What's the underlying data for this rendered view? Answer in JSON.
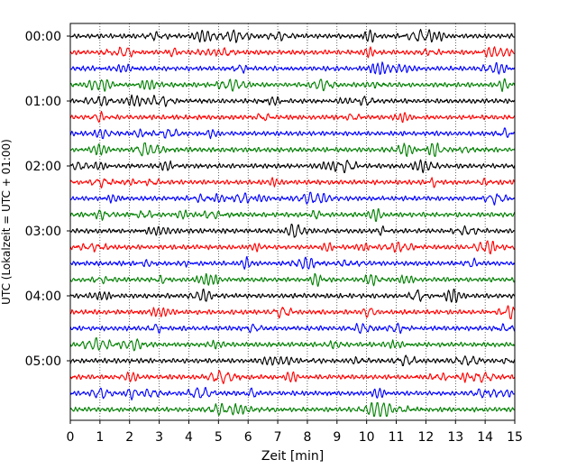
{
  "chart_data": {
    "type": "line",
    "xlabel": "Zeit  [min]",
    "ylabel": "UTC (Lokalzeit = UTC + 01:00)",
    "xlim": [
      0,
      15
    ],
    "x_ticks": [
      "0",
      "1",
      "2",
      "3",
      "4",
      "5",
      "6",
      "7",
      "8",
      "9",
      "10",
      "11",
      "12",
      "13",
      "14",
      "15"
    ],
    "y_tick_labels": [
      "00:00",
      "01:00",
      "02:00",
      "03:00",
      "04:00",
      "05:00"
    ],
    "minutes_per_line": 15,
    "lines_count": 24,
    "trace_colors": [
      "#000000",
      "#ff0000",
      "#0000ff",
      "#008000"
    ],
    "grid": "vertical dotted at each minute",
    "legend": "none"
  }
}
